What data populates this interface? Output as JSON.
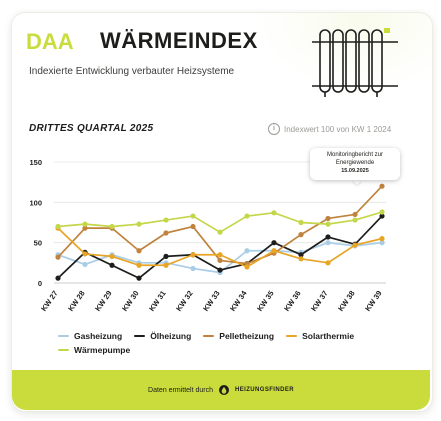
{
  "header": {
    "logo_text": "DAA",
    "title": "WÄRMEINDEX",
    "subtitle": "Indexierte Entwicklung verbauter Heizsysteme"
  },
  "section": {
    "title": "DRITTES QUARTAL 2025",
    "index_note": "Indexwert 100 von KW 1 2024",
    "info_icon": "i"
  },
  "tooltip": {
    "line1": "Monitoringbericht zur",
    "line2": "Energiewende",
    "date": "15.09.2025"
  },
  "footer": {
    "text": "Daten ermittelt durch",
    "brand": "HEIZUNGSFINDER"
  },
  "colors": {
    "accent": "#c9dc3c",
    "text": "#1d1d1b"
  },
  "chart_data": {
    "type": "line",
    "categories": [
      "KW 27",
      "KW 28",
      "KW 29",
      "KW 30",
      "KW 31",
      "KW 32",
      "KW 33",
      "KW 34",
      "KW 35",
      "KW 36",
      "KW 37",
      "KW 38",
      "KW 39"
    ],
    "ylim": [
      0,
      150
    ],
    "yticks": [
      0,
      50,
      100,
      150
    ],
    "grid": true,
    "legend_position": "bottom",
    "series": [
      {
        "name": "Gasheizung",
        "color": "#a9cde6",
        "values": [
          35,
          23,
          35,
          25,
          25,
          18,
          13,
          40,
          40,
          38,
          50,
          46,
          50
        ]
      },
      {
        "name": "Ölheizung",
        "color": "#1d1d1b",
        "values": [
          6,
          38,
          22,
          6,
          33,
          35,
          16,
          24,
          50,
          35,
          57,
          48,
          83
        ]
      },
      {
        "name": "Pelletheizung",
        "color": "#c0823c",
        "values": [
          32,
          68,
          68,
          40,
          62,
          70,
          28,
          24,
          37,
          60,
          80,
          85,
          120
        ]
      },
      {
        "name": "Solarthermie",
        "color": "#e8a425",
        "values": [
          68,
          36,
          33,
          22,
          22,
          35,
          35,
          20,
          40,
          30,
          25,
          47,
          55
        ]
      },
      {
        "name": "Wärmepumpe",
        "color": "#c4d64a",
        "values": [
          70,
          73,
          70,
          73,
          78,
          83,
          63,
          83,
          87,
          75,
          73,
          78,
          88
        ]
      }
    ]
  }
}
